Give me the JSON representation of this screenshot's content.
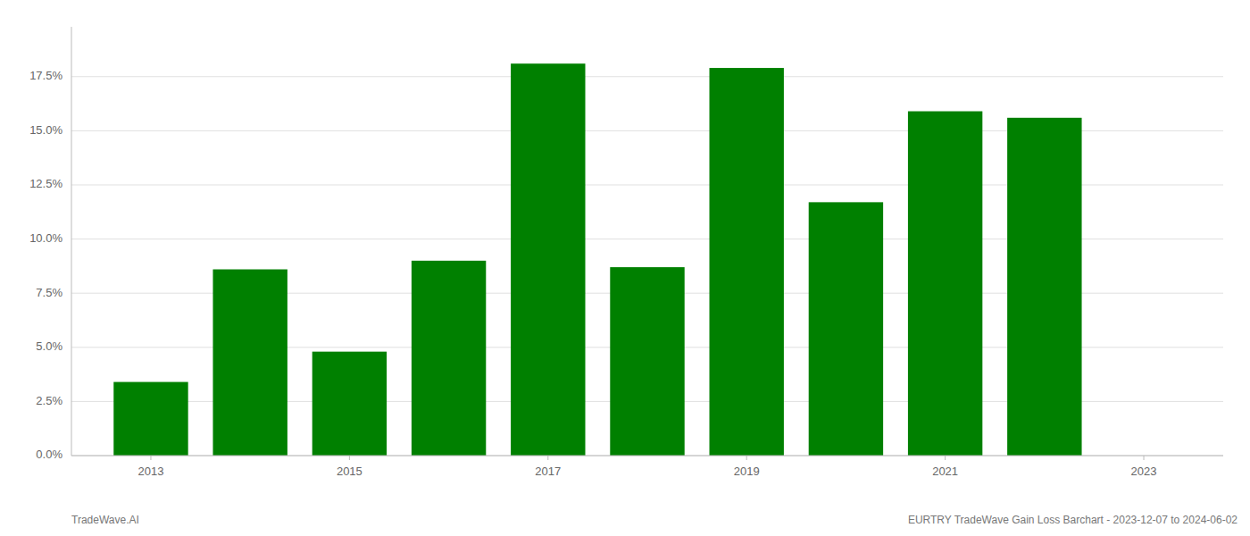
{
  "chart_data": {
    "type": "bar",
    "x": [
      2013,
      2014,
      2015,
      2016,
      2017,
      2018,
      2019,
      2020,
      2021,
      2022
    ],
    "values": [
      0.034,
      0.086,
      0.048,
      0.09,
      0.181,
      0.087,
      0.179,
      0.117,
      0.159,
      0.156
    ],
    "color": "#008000",
    "xlim": [
      2012.2,
      2023.8
    ],
    "xticks": [
      2013,
      2015,
      2017,
      2019,
      2021,
      2023
    ],
    "ylim": [
      0.0,
      0.198
    ],
    "yticks": [
      {
        "value": 0.0,
        "label": "0.0%"
      },
      {
        "value": 0.025,
        "label": "2.5%"
      },
      {
        "value": 0.05,
        "label": "5.0%"
      },
      {
        "value": 0.075,
        "label": "7.5%"
      },
      {
        "value": 0.1,
        "label": "10.0%"
      },
      {
        "value": 0.125,
        "label": "12.5%"
      },
      {
        "value": 0.15,
        "label": "15.0%"
      },
      {
        "value": 0.175,
        "label": "17.5%"
      }
    ],
    "grid": true,
    "annotations": [
      "TradeWave.AI",
      "EURTRY TradeWave Gain Loss Barchart - 2023-12-07 to 2024-06-02"
    ]
  }
}
